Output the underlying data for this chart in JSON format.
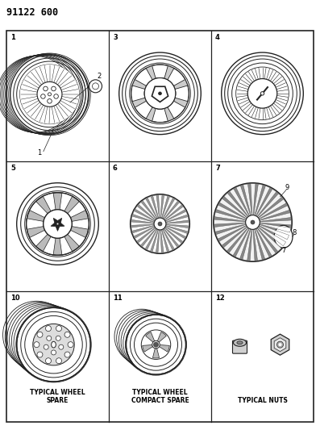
{
  "title": "91122 600",
  "bg_color": "#ffffff",
  "border_color": "#000000",
  "cells": [
    {
      "row": 0,
      "col": 0,
      "label": "",
      "item_num": "1",
      "extra_num": "2",
      "type": "wire_wheel"
    },
    {
      "row": 0,
      "col": 1,
      "label": "",
      "item_num": "3",
      "type": "cover_openspoke"
    },
    {
      "row": 0,
      "col": 2,
      "label": "",
      "item_num": "4",
      "type": "cover_finespoke"
    },
    {
      "row": 1,
      "col": 0,
      "label": "",
      "item_num": "5",
      "type": "cover_widespoke"
    },
    {
      "row": 1,
      "col": 1,
      "label": "",
      "item_num": "6",
      "type": "cover_turbine"
    },
    {
      "row": 1,
      "col": 2,
      "label": "",
      "item_num": "7",
      "extra_nums": [
        "8",
        "9"
      ],
      "type": "cover_turbine2"
    },
    {
      "row": 2,
      "col": 0,
      "label": "TYPICAL WHEEL\nSPARE",
      "item_num": "10",
      "type": "spare_wheel"
    },
    {
      "row": 2,
      "col": 1,
      "label": "TYPICAL WHEEL\nCOMPACT SPARE",
      "item_num": "11",
      "type": "compact_spare"
    },
    {
      "row": 2,
      "col": 2,
      "label": "TYPICAL NUTS",
      "item_num": "12",
      "type": "nuts"
    }
  ],
  "line_color": "#222222",
  "text_color": "#000000",
  "font_size_title": 8.5,
  "font_size_label": 5.5,
  "font_size_num": 6.0
}
